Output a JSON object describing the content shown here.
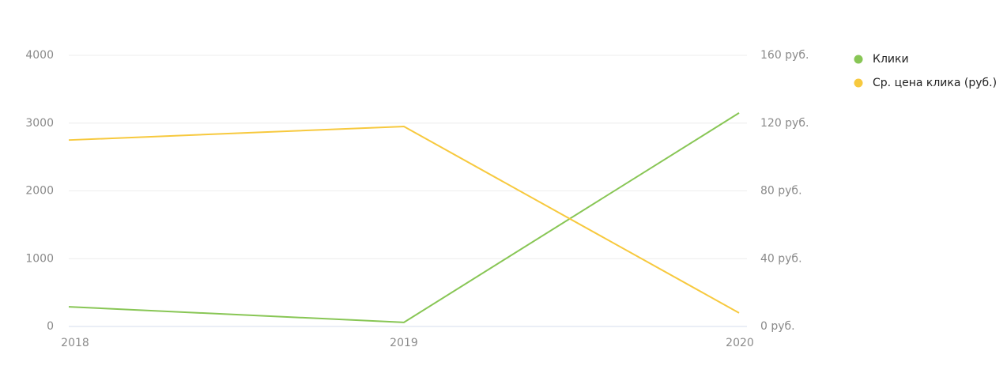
{
  "chart_data": {
    "type": "line",
    "categories": [
      "2018",
      "2019",
      "2020"
    ],
    "series": [
      {
        "name": "Клики",
        "color": "#88c655",
        "values": [
          290,
          60,
          3150
        ]
      },
      {
        "name": "Ср. цена клика (руб.)",
        "color": "#f7c93e",
        "axis": "y2",
        "values": [
          110,
          118,
          8
        ]
      }
    ],
    "ylim": [
      0,
      4000
    ],
    "yticks": [
      0,
      1000,
      2000,
      3000,
      4000
    ],
    "y2lim": [
      0,
      160
    ],
    "y2ticks": [
      {
        "value": 0,
        "label": "0 руб."
      },
      {
        "value": 40,
        "label": "40 руб."
      },
      {
        "value": 80,
        "label": "80 руб."
      },
      {
        "value": 120,
        "label": "120 руб."
      },
      {
        "value": 160,
        "label": "160 руб."
      }
    ],
    "grid": true,
    "legend": "right"
  }
}
